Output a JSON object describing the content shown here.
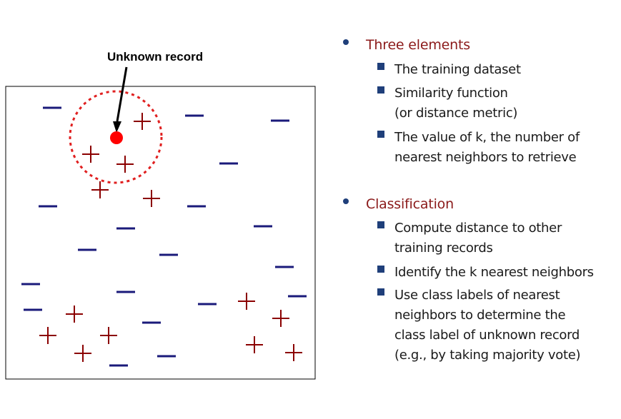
{
  "unknown_label": "Unknown record",
  "colors": {
    "minus": "#1a1a7a",
    "plus": "#8b0000",
    "unknown_point": "#ff0000",
    "circle": "#e02020",
    "heading": "#8b1a1a",
    "bullet": "#1f3f7a"
  },
  "icons": {
    "minus": "minus-sign",
    "plus": "plus-sign",
    "bullet": "round-bullet",
    "sub_bullet": "square-bullet"
  },
  "bullets": [
    {
      "heading": "Three elements",
      "items": [
        [
          "The training dataset"
        ],
        [
          "Similarity function",
          "(or distance metric)"
        ],
        [
          "The value of k, the number of",
          "nearest neighbors to retrieve"
        ]
      ]
    },
    {
      "heading": "Classification",
      "items": [
        [
          "Compute distance to other",
          "training records"
        ],
        [
          "Identify the k nearest neighbors"
        ],
        [
          "Use class labels of nearest",
          "neighbors to determine the",
          "class label of unknown record",
          "(e.g., by taking majority vote)"
        ]
      ]
    }
  ]
}
